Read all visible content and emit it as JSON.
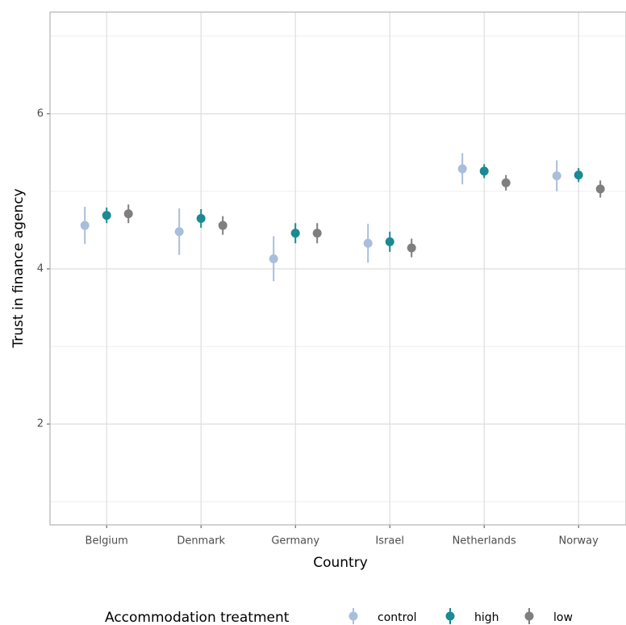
{
  "chart_data": {
    "type": "pointrange",
    "x_label": "Country",
    "y_label": "Trust in finance agency",
    "legend_title": "Accommodation treatment",
    "legend_position": "bottom",
    "categories": [
      "Belgium",
      "Denmark",
      "Germany",
      "Israel",
      "Netherlands",
      "Norway"
    ],
    "series": [
      {
        "name": "control",
        "color": "#a9bedb",
        "values": [
          4.56,
          4.48,
          4.13,
          4.33,
          5.29,
          5.2
        ],
        "errors": [
          0.24,
          0.3,
          0.29,
          0.25,
          0.2,
          0.2
        ]
      },
      {
        "name": "high",
        "color": "#1a8a93",
        "values": [
          4.69,
          4.65,
          4.46,
          4.35,
          5.26,
          5.21
        ],
        "errors": [
          0.1,
          0.12,
          0.13,
          0.13,
          0.09,
          0.09
        ]
      },
      {
        "name": "low",
        "color": "#7f7f7f",
        "values": [
          4.71,
          4.56,
          4.46,
          4.27,
          5.11,
          5.03
        ],
        "errors": [
          0.12,
          0.12,
          0.13,
          0.12,
          0.1,
          0.11
        ]
      }
    ],
    "ylim": [
      0.7,
      7.31
    ],
    "yticks": [
      2,
      4,
      6
    ],
    "grid": true,
    "minor_grid": true
  }
}
